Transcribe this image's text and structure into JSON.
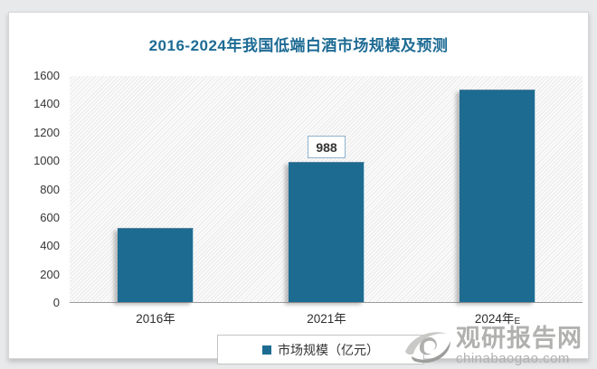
{
  "chart_data": {
    "type": "bar",
    "title": "2016-2024年我国低端白酒市场规模及预测",
    "categories": [
      "2016年",
      "2021年",
      "2024年E"
    ],
    "values": [
      520,
      988,
      1500
    ],
    "data_labels": [
      null,
      "988",
      null
    ],
    "ylim": [
      0,
      1600
    ],
    "ytick_step": 200,
    "yticks": [
      0,
      200,
      400,
      600,
      800,
      1000,
      1200,
      1400,
      1600
    ],
    "xlabel": "",
    "ylabel": "",
    "grid": false,
    "legend_entries": [
      "市场规模（亿元）"
    ],
    "legend_position": "bottom"
  },
  "colors": {
    "bar": "#1d6b91",
    "title": "#1d6b94",
    "watermark": "#b1b1af"
  },
  "legend": {
    "label": "市场规模（亿元）"
  },
  "watermark": {
    "name": "观研报告网",
    "url": "chinabaogao.com"
  }
}
